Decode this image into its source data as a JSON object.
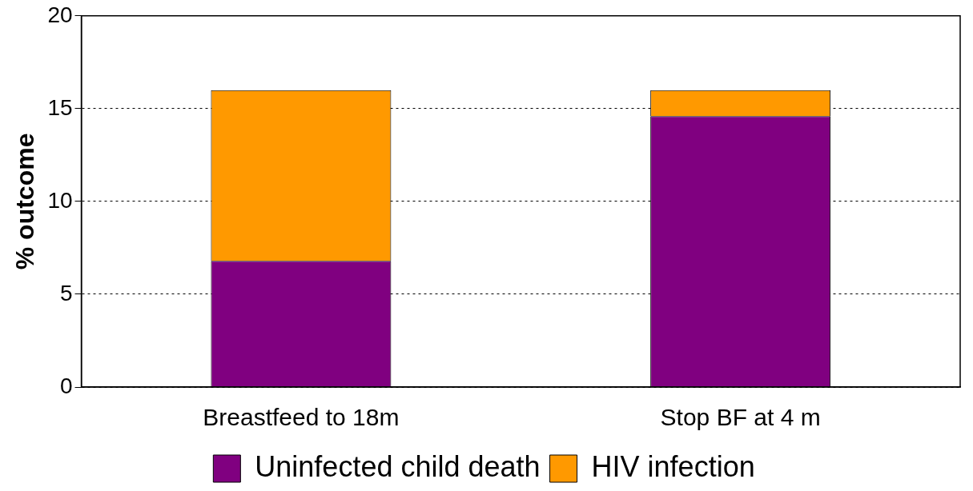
{
  "chart_data": {
    "type": "bar",
    "stacked": true,
    "ylabel": "% outcome",
    "categories": [
      "Breastfeed to 18m",
      "Stop BF at 4 m"
    ],
    "series": [
      {
        "name": "Uninfected child death",
        "color": "#800080",
        "values": [
          6.8,
          14.6
        ]
      },
      {
        "name": "HIV infection",
        "color": "#ff9900",
        "values": [
          9.2,
          1.4
        ]
      }
    ],
    "ylim": [
      0,
      20
    ],
    "yticks": [
      0,
      5,
      10,
      15,
      20
    ],
    "grid": "y",
    "legend": "bottom"
  }
}
